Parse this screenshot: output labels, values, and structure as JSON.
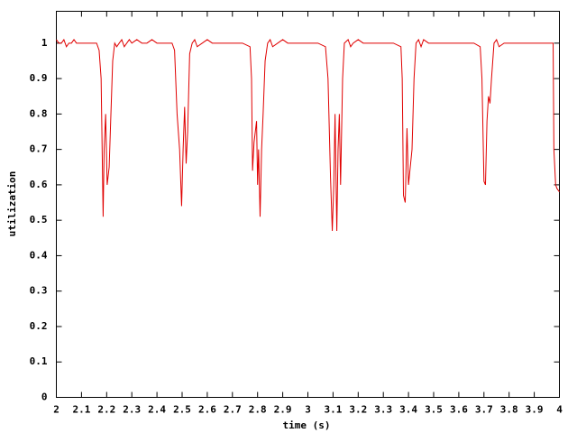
{
  "chart_data": {
    "type": "line",
    "xlabel": "time (s)",
    "ylabel": "utilization",
    "xlim": [
      2,
      4
    ],
    "ylim": [
      0,
      1.09
    ],
    "xticks": [
      2,
      2.1,
      2.2,
      2.3,
      2.4,
      2.5,
      2.6,
      2.7,
      2.8,
      2.9,
      3,
      3.1,
      3.2,
      3.3,
      3.4,
      3.5,
      3.6,
      3.7,
      3.8,
      3.9,
      4
    ],
    "yticks": [
      0,
      0.1,
      0.2,
      0.3,
      0.4,
      0.5,
      0.6,
      0.7,
      0.8,
      0.9,
      1
    ],
    "grid": false,
    "series": [
      {
        "color": "#e00000",
        "x": [
          2.0,
          2.01,
          2.02,
          2.03,
          2.04,
          2.05,
          2.06,
          2.07,
          2.08,
          2.1,
          2.12,
          2.14,
          2.16,
          2.17,
          2.178,
          2.186,
          2.19,
          2.196,
          2.202,
          2.21,
          2.216,
          2.224,
          2.232,
          2.24,
          2.25,
          2.26,
          2.27,
          2.28,
          2.29,
          2.3,
          2.32,
          2.34,
          2.36,
          2.38,
          2.4,
          2.42,
          2.44,
          2.46,
          2.47,
          2.48,
          2.49,
          2.498,
          2.504,
          2.51,
          2.516,
          2.522,
          2.53,
          2.54,
          2.55,
          2.56,
          2.58,
          2.6,
          2.62,
          2.64,
          2.66,
          2.7,
          2.74,
          2.77,
          2.776,
          2.78,
          2.786,
          2.796,
          2.8,
          2.804,
          2.81,
          2.816,
          2.822,
          2.83,
          2.84,
          2.85,
          2.86,
          2.88,
          2.9,
          2.92,
          2.96,
          3.0,
          3.04,
          3.07,
          3.08,
          3.09,
          3.097,
          3.103,
          3.108,
          3.115,
          3.12,
          3.125,
          3.13,
          3.138,
          3.145,
          3.16,
          3.17,
          3.18,
          3.2,
          3.22,
          3.26,
          3.3,
          3.34,
          3.37,
          3.375,
          3.38,
          3.387,
          3.394,
          3.4,
          3.407,
          3.414,
          3.422,
          3.43,
          3.44,
          3.45,
          3.46,
          3.48,
          3.5,
          3.54,
          3.58,
          3.62,
          3.66,
          3.685,
          3.692,
          3.7,
          3.706,
          3.712,
          3.718,
          3.724,
          3.73,
          3.74,
          3.75,
          3.76,
          3.78,
          3.8,
          3.84,
          3.88,
          3.92,
          3.96,
          3.975,
          3.978,
          3.985,
          3.99,
          4.0
        ],
        "values": [
          1.01,
          1.0,
          1.0,
          1.01,
          0.99,
          1.0,
          1.0,
          1.01,
          1.0,
          1.0,
          1.0,
          1.0,
          1.0,
          0.98,
          0.9,
          0.51,
          0.7,
          0.8,
          0.6,
          0.65,
          0.78,
          0.95,
          1.0,
          0.99,
          1.0,
          1.01,
          0.99,
          1.0,
          1.01,
          1.0,
          1.01,
          1.0,
          1.0,
          1.01,
          1.0,
          1.0,
          1.0,
          1.0,
          0.98,
          0.8,
          0.7,
          0.54,
          0.7,
          0.82,
          0.66,
          0.75,
          0.97,
          1.0,
          1.01,
          0.99,
          1.0,
          1.01,
          1.0,
          1.0,
          1.0,
          1.0,
          1.0,
          0.99,
          0.9,
          0.64,
          0.72,
          0.78,
          0.6,
          0.7,
          0.51,
          0.7,
          0.8,
          0.95,
          1.0,
          1.01,
          0.99,
          1.0,
          1.01,
          1.0,
          1.0,
          1.0,
          1.0,
          0.99,
          0.9,
          0.62,
          0.47,
          0.6,
          0.8,
          0.47,
          0.7,
          0.8,
          0.6,
          0.9,
          1.0,
          1.01,
          0.99,
          1.0,
          1.01,
          1.0,
          1.0,
          1.0,
          1.0,
          0.99,
          0.9,
          0.57,
          0.55,
          0.76,
          0.6,
          0.65,
          0.7,
          0.9,
          1.0,
          1.01,
          0.99,
          1.01,
          1.0,
          1.0,
          1.0,
          1.0,
          1.0,
          1.0,
          0.99,
          0.9,
          0.61,
          0.6,
          0.78,
          0.85,
          0.83,
          0.9,
          1.0,
          1.01,
          0.99,
          1.0,
          1.0,
          1.0,
          1.0,
          1.0,
          1.0,
          1.0,
          0.7,
          0.6,
          0.59,
          0.58
        ]
      }
    ]
  }
}
